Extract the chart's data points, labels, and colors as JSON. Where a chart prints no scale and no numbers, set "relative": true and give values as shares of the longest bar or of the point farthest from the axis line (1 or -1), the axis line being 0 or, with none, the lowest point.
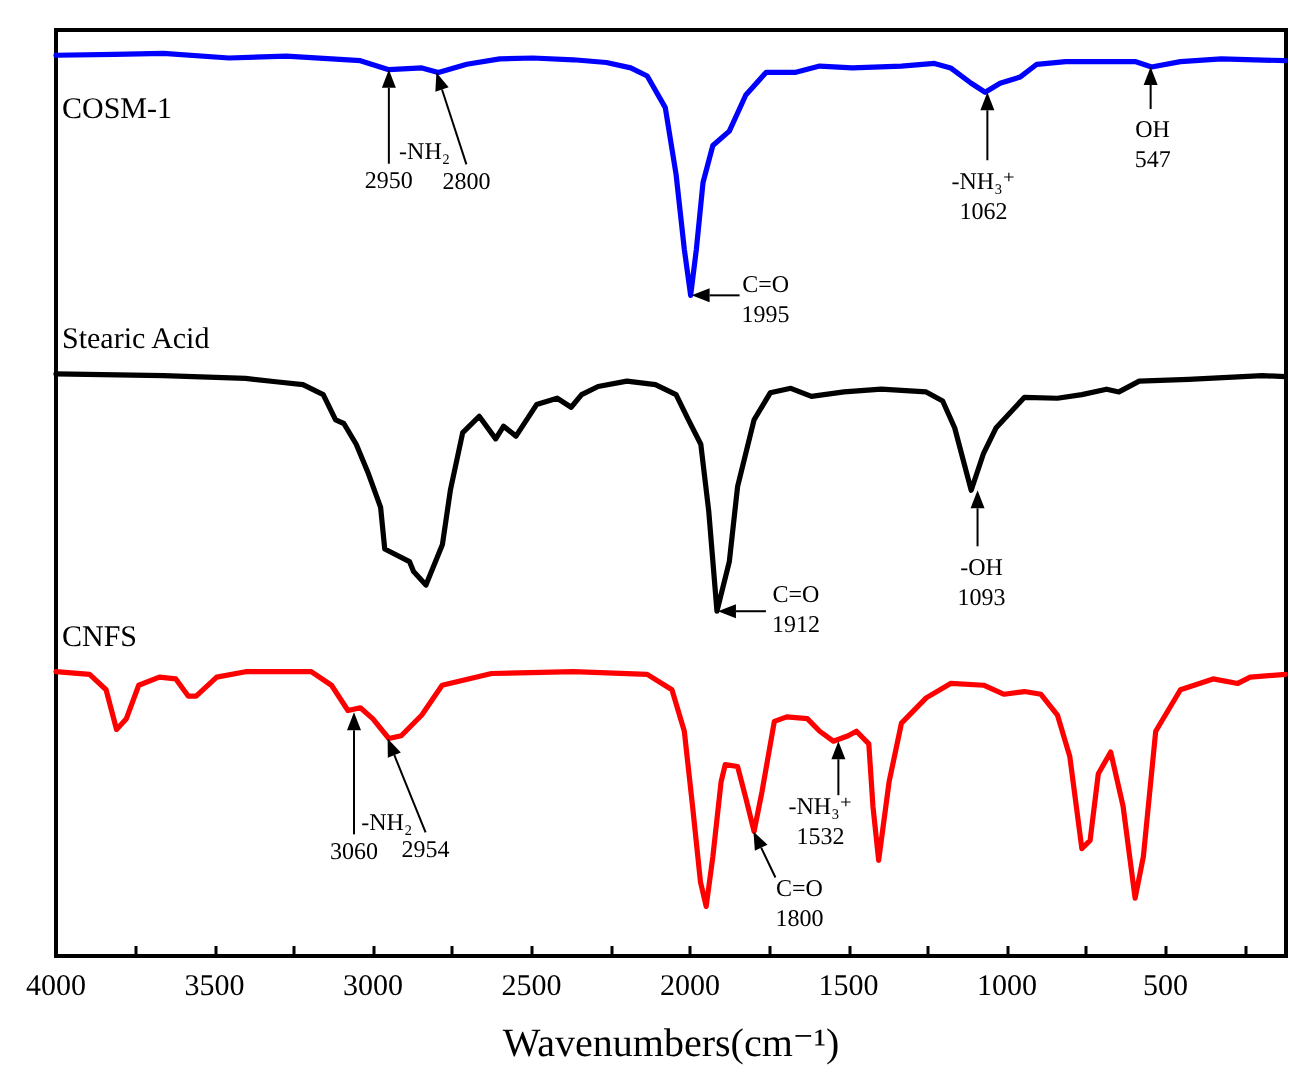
{
  "chart_data": {
    "type": "line",
    "relative": true,
    "xlabel": "Wavenumbers(cm⁻¹)",
    "xlim": [
      4000,
      120
    ],
    "xticks": [
      4000,
      {
        "value": 3750,
        "label": null
      },
      3500,
      {
        "value": 3250,
        "label": null
      },
      3000,
      {
        "value": 2750,
        "label": null
      },
      2500,
      {
        "value": 2250,
        "label": null
      },
      2000,
      {
        "value": 1750,
        "label": null
      },
      1500,
      {
        "value": 1250,
        "label": null
      },
      1000,
      {
        "value": 750,
        "label": null
      },
      500,
      {
        "value": 250,
        "label": null
      }
    ],
    "series": [
      {
        "name": "COSM-1",
        "color": "#0000ff",
        "x": [
          4000,
          3816,
          3661,
          3454,
          3273,
          3040,
          2950,
          2846,
          2794,
          2704,
          2600,
          2496,
          2368,
          2264,
          2187,
          2135,
          2078,
          2044,
          2018,
          1998,
          1980,
          1959,
          1928,
          1876,
          1824,
          1760,
          1669,
          1591,
          1488,
          1333,
          1229,
          1178,
          1113,
          1069,
          1022,
          958,
          906,
          815,
          596,
          544,
          453,
          324,
          122
        ],
        "values": [
          0.998,
          0.999,
          1.0,
          0.995,
          0.997,
          0.992,
          0.982,
          0.984,
          0.979,
          0.988,
          0.994,
          0.995,
          0.993,
          0.99,
          0.984,
          0.975,
          0.94,
          0.866,
          0.783,
          0.732,
          0.783,
          0.857,
          0.898,
          0.914,
          0.954,
          0.979,
          0.979,
          0.986,
          0.984,
          0.986,
          0.989,
          0.984,
          0.967,
          0.957,
          0.967,
          0.974,
          0.988,
          0.991,
          0.991,
          0.985,
          0.991,
          0.994,
          0.992
        ]
      },
      {
        "name": "Stearic Acid",
        "color": "#000000",
        "x": [
          4000,
          3661,
          3402,
          3299,
          3221,
          3157,
          3118,
          3092,
          3053,
          3014,
          2976,
          2963,
          2885,
          2872,
          2833,
          2781,
          2756,
          2717,
          2665,
          2613,
          2588,
          2549,
          2484,
          2419,
          2375,
          2342,
          2290,
          2199,
          2109,
          2044,
          2005,
          1966,
          1941,
          1915,
          1876,
          1850,
          1798,
          1747,
          1682,
          1617,
          1514,
          1397,
          1255,
          1203,
          1165,
          1113,
          1074,
          1035,
          945,
          841,
          764,
          686,
          647,
          583,
          427,
          195,
          122
        ],
        "values": [
          0.645,
          0.643,
          0.64,
          0.636,
          0.633,
          0.622,
          0.594,
          0.59,
          0.567,
          0.534,
          0.497,
          0.451,
          0.437,
          0.426,
          0.411,
          0.456,
          0.516,
          0.58,
          0.598,
          0.573,
          0.587,
          0.576,
          0.611,
          0.618,
          0.608,
          0.622,
          0.631,
          0.637,
          0.633,
          0.622,
          0.594,
          0.567,
          0.493,
          0.382,
          0.437,
          0.52,
          0.594,
          0.624,
          0.629,
          0.62,
          0.625,
          0.628,
          0.625,
          0.615,
          0.585,
          0.516,
          0.557,
          0.585,
          0.619,
          0.618,
          0.622,
          0.628,
          0.625,
          0.637,
          0.639,
          0.643,
          0.642
        ]
      },
      {
        "name": "CNFS",
        "color": "#ff0000",
        "x": [
          4000,
          3894,
          3842,
          3809,
          3778,
          3739,
          3674,
          3622,
          3583,
          3558,
          3493,
          3402,
          3195,
          3131,
          3079,
          3040,
          3001,
          2950,
          2911,
          2846,
          2782,
          2626,
          2368,
          2135,
          2057,
          2018,
          1992,
          1967,
          1949,
          1928,
          1902,
          1889,
          1850,
          1824,
          1798,
          1773,
          1734,
          1695,
          1630,
          1591,
          1548,
          1501,
          1475,
          1436,
          1423,
          1405,
          1372,
          1333,
          1255,
          1178,
          1074,
          1009,
          945,
          893,
          841,
          802,
          764,
          738,
          712,
          673,
          634,
          596,
          570,
          531,
          453,
          350,
          272,
          233,
          122
        ],
        "values": [
          0.315,
          0.312,
          0.295,
          0.251,
          0.263,
          0.3,
          0.309,
          0.307,
          0.288,
          0.288,
          0.309,
          0.315,
          0.315,
          0.3,
          0.272,
          0.275,
          0.263,
          0.241,
          0.244,
          0.267,
          0.3,
          0.313,
          0.315,
          0.312,
          0.295,
          0.249,
          0.166,
          0.082,
          0.055,
          0.11,
          0.193,
          0.212,
          0.21,
          0.175,
          0.138,
          0.182,
          0.26,
          0.265,
          0.263,
          0.249,
          0.238,
          0.244,
          0.249,
          0.235,
          0.166,
          0.106,
          0.193,
          0.258,
          0.286,
          0.302,
          0.3,
          0.29,
          0.293,
          0.29,
          0.267,
          0.221,
          0.119,
          0.128,
          0.202,
          0.226,
          0.166,
          0.064,
          0.11,
          0.249,
          0.295,
          0.307,
          0.302,
          0.309,
          0.312
        ]
      }
    ],
    "annotations": [
      "-NH₂",
      {
        "text": "2950",
        "x": 2950,
        "y": 0.982
      },
      {
        "text": "2800",
        "x": 2800,
        "y": 0.979
      },
      {
        "text": "C=O\n1995",
        "x": 1995,
        "y": 0.732
      },
      {
        "text": "-NH₃⁺\n1062",
        "x": 1062,
        "y": 0.957
      },
      {
        "text": "OH\n547",
        "x": 547,
        "y": 0.985
      },
      {
        "text": "C=O\n1912",
        "x": 1912,
        "y": 0.382
      },
      {
        "text": "-OH\n1093",
        "x": 1093,
        "y": 0.516
      },
      "-NH₂",
      {
        "text": "3060",
        "x": 3060,
        "y": 0.27
      },
      {
        "text": "2954",
        "x": 2954,
        "y": 0.241
      },
      {
        "text": "C=O\n1800",
        "x": 1800,
        "y": 0.138
      },
      {
        "text": "-NH₃⁺\n1532",
        "x": 1532,
        "y": 0.238
      }
    ]
  }
}
